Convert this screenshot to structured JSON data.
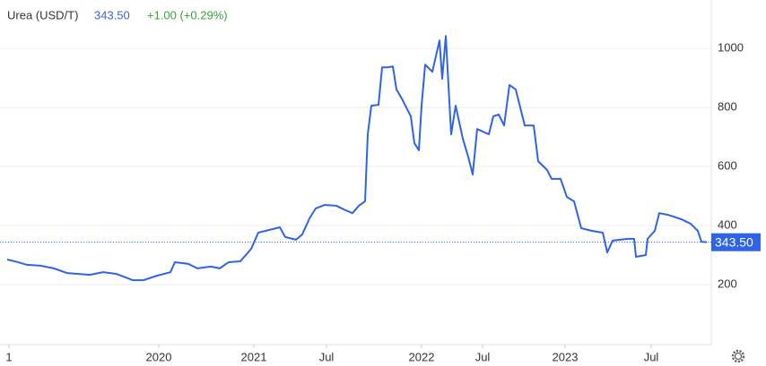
{
  "chart_data": {
    "type": "line",
    "title": "Urea (USD/T)",
    "last_value": 343.5,
    "last_value_label": "343.50",
    "change": "+1.00 (+0.29%)",
    "color": "#2f63e8",
    "grid": true,
    "x": [
      0,
      12,
      22,
      37,
      52,
      67,
      92,
      107,
      122,
      140,
      152,
      167,
      182,
      187,
      202,
      212,
      227,
      237,
      247,
      260,
      272,
      280,
      292,
      304,
      310,
      322,
      329,
      337,
      344,
      354,
      367,
      377,
      385,
      392,
      399,
      402,
      406,
      414,
      418,
      424,
      430,
      434,
      440,
      450,
      454,
      459,
      462,
      466,
      474,
      482,
      485,
      489,
      495,
      500,
      508,
      514,
      519,
      524,
      537,
      542,
      548,
      554,
      560,
      567,
      577,
      587,
      592,
      602,
      607,
      617,
      624,
      632,
      640,
      652,
      664,
      669,
      675,
      692,
      699,
      701,
      712,
      714,
      722,
      727,
      737,
      752,
      762,
      770,
      774,
      780
    ],
    "series": [
      {
        "name": "Urea (USD/T)",
        "color": "#2f63e8",
        "values": [
          285,
          276,
          267,
          264,
          255,
          239,
          233,
          242,
          236,
          215,
          215,
          230,
          242,
          276,
          270,
          255,
          261,
          255,
          276,
          279,
          321,
          376,
          385,
          394,
          361,
          352,
          370,
          424,
          458,
          470,
          467,
          452,
          442,
          467,
          482,
          709,
          806,
          809,
          936,
          936,
          939,
          861,
          830,
          770,
          679,
          655,
          806,
          945,
          921,
          1027,
          897,
          1042,
          709,
          806,
          694,
          633,
          573,
          727,
          709,
          770,
          776,
          739,
          876,
          861,
          739,
          739,
          618,
          588,
          558,
          558,
          497,
          482,
          391,
          382,
          376,
          309,
          349,
          355,
          355,
          294,
          300,
          355,
          382,
          442,
          436,
          421,
          406,
          382,
          345,
          343.5
        ]
      }
    ],
    "xlim": [
      0,
      785
    ],
    "xticks": [
      {
        "value": 2,
        "label": "1"
      },
      {
        "value": 169,
        "label": "2020"
      },
      {
        "value": 275,
        "label": "2021"
      },
      {
        "value": 356,
        "label": "Jul"
      },
      {
        "value": 462,
        "label": "2022"
      },
      {
        "value": 530,
        "label": "Jul"
      },
      {
        "value": 622,
        "label": "2023"
      },
      {
        "value": 718,
        "label": "Jul"
      }
    ],
    "ylim": [
      0,
      1164
    ],
    "yticks": [
      200,
      400,
      600,
      800,
      1000
    ]
  }
}
